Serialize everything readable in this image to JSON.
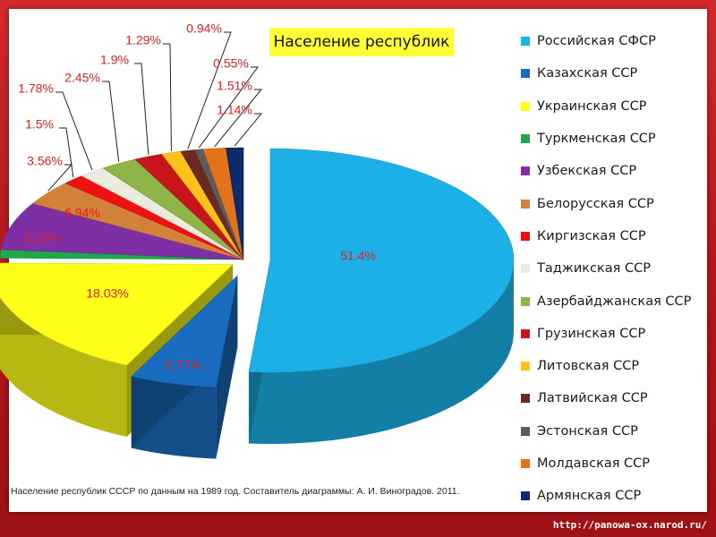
{
  "chart_data": {
    "type": "pie",
    "title": "Население республик",
    "categories": [
      "Российская СФСР",
      "Казахская ССР",
      "Украинская ССР",
      "Туркменская ССР",
      "Узбекская ССР",
      "Белорусская ССР",
      "Киргизская ССР",
      "Таджикская ССР",
      "Азербайджанская ССР",
      "Грузинская ССР",
      "Литовская ССР",
      "Латвийская ССР",
      "Эстонская ССР",
      "Молдавская ССР",
      "Армянская ССР"
    ],
    "values": [
      51.4,
      5.77,
      18.03,
      1.23,
      6.94,
      3.56,
      1.5,
      1.78,
      2.45,
      1.9,
      1.29,
      0.94,
      0.55,
      1.51,
      1.14
    ],
    "data_labels": [
      "51.4%",
      "5.77%",
      "18.03%",
      "1.23%",
      "6.94%",
      "3.56%",
      "1.5%",
      "1.78%",
      "2.45%",
      "1.9%",
      "1.29%",
      "0.94%",
      "0.55%",
      "1.51%",
      "1.14%"
    ],
    "colors": [
      "#1cb0e6",
      "#1a6cc0",
      "#ffff1a",
      "#1fa84a",
      "#7d2fa3",
      "#d4823a",
      "#ee1111",
      "#ecebe0",
      "#8fb447",
      "#c8151b",
      "#ffc21a",
      "#6b2a1e",
      "#5b5b5b",
      "#e3731a",
      "#0d2a6a"
    ],
    "legend_position": "right",
    "exploded": [
      true,
      true,
      true,
      false,
      false,
      false,
      false,
      false,
      false,
      false,
      false,
      false,
      false,
      false,
      false
    ]
  },
  "caption": "Население республик СССР по данным на 1989 год. Составитель диаграммы: А. И. Виноградов. 2011.",
  "source_url": "http://panowa-ox.narod.ru/"
}
